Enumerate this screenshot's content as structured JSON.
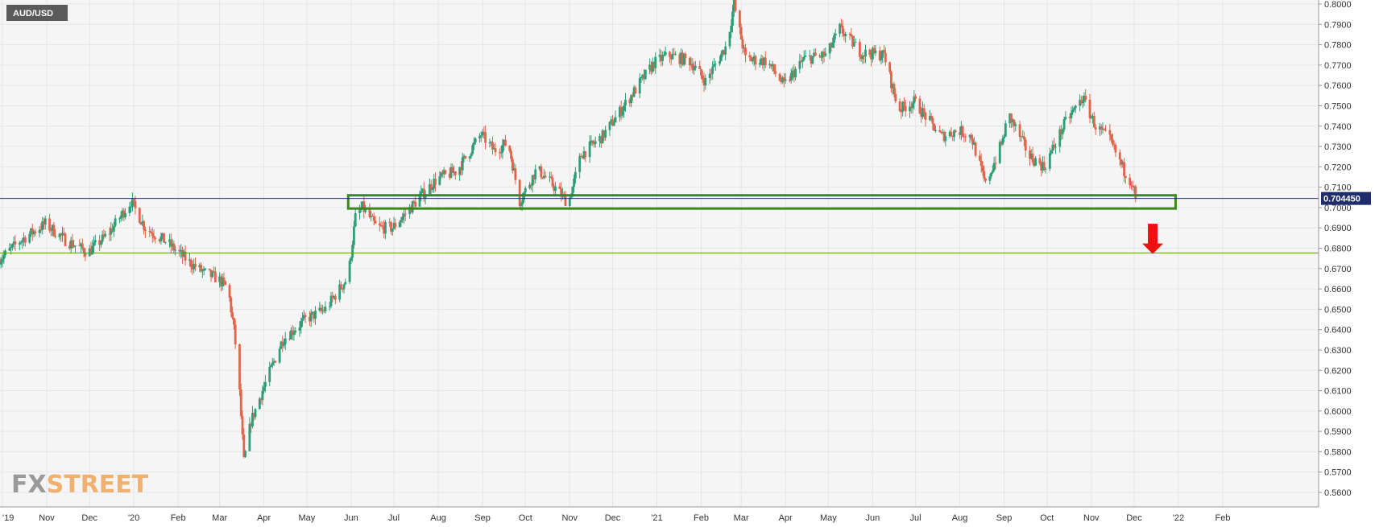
{
  "chart_data": {
    "type": "candlestick",
    "symbol": "AUD/USD",
    "current_price_label": "0.704450",
    "current_price": 0.70445,
    "ylim": [
      0.5525,
      0.8005
    ],
    "y_ticks": [
      "0.8000",
      "0.7900",
      "0.7800",
      "0.7700",
      "0.7600",
      "0.7500",
      "0.7400",
      "0.7300",
      "0.7200",
      "0.7100",
      "0.7000",
      "0.6900",
      "0.6800",
      "0.6700",
      "0.6600",
      "0.6500",
      "0.6400",
      "0.6300",
      "0.6200",
      "0.6100",
      "0.6000",
      "0.5900",
      "0.5800",
      "0.5700",
      "0.5600"
    ],
    "x_ticks": [
      "'19",
      "Nov",
      "Dec",
      "'20",
      "Feb",
      "Mar",
      "Apr",
      "May",
      "Jun",
      "Jul",
      "Aug",
      "Sep",
      "Oct",
      "Nov",
      "Dec",
      "'21",
      "Feb",
      "Mar",
      "Apr",
      "May",
      "Jun",
      "Jul",
      "Aug",
      "Sep",
      "Oct",
      "Nov",
      "Dec",
      "'22",
      "Feb"
    ],
    "price_path": [
      [
        "2019-10-01",
        0.675
      ],
      [
        "2019-10-15",
        0.684
      ],
      [
        "2019-11-01",
        0.692
      ],
      [
        "2019-11-15",
        0.684
      ],
      [
        "2019-12-01",
        0.678
      ],
      [
        "2019-12-15",
        0.687
      ],
      [
        "2019-12-31",
        0.703
      ],
      [
        "2020-01-10",
        0.69
      ],
      [
        "2020-01-25",
        0.683
      ],
      [
        "2020-02-10",
        0.673
      ],
      [
        "2020-02-20",
        0.668
      ],
      [
        "2020-03-01",
        0.665
      ],
      [
        "2020-03-08",
        0.66
      ],
      [
        "2020-03-12",
        0.64
      ],
      [
        "2020-03-15",
        0.62
      ],
      [
        "2020-03-19",
        0.575
      ],
      [
        "2020-03-24",
        0.595
      ],
      [
        "2020-04-01",
        0.61
      ],
      [
        "2020-04-15",
        0.635
      ],
      [
        "2020-05-01",
        0.645
      ],
      [
        "2020-05-15",
        0.65
      ],
      [
        "2020-05-31",
        0.666
      ],
      [
        "2020-06-05",
        0.695
      ],
      [
        "2020-06-10",
        0.7
      ],
      [
        "2020-06-20",
        0.69
      ],
      [
        "2020-07-01",
        0.69
      ],
      [
        "2020-07-10",
        0.697
      ],
      [
        "2020-07-20",
        0.705
      ],
      [
        "2020-08-01",
        0.714
      ],
      [
        "2020-08-15",
        0.718
      ],
      [
        "2020-09-01",
        0.736
      ],
      [
        "2020-09-10",
        0.728
      ],
      [
        "2020-09-20",
        0.732
      ],
      [
        "2020-09-28",
        0.703
      ],
      [
        "2020-10-10",
        0.719
      ],
      [
        "2020-10-20",
        0.712
      ],
      [
        "2020-11-01",
        0.702
      ],
      [
        "2020-11-10",
        0.726
      ],
      [
        "2020-11-25",
        0.735
      ],
      [
        "2020-12-15",
        0.755
      ],
      [
        "2020-12-31",
        0.771
      ],
      [
        "2021-01-10",
        0.775
      ],
      [
        "2021-01-25",
        0.772
      ],
      [
        "2021-02-05",
        0.762
      ],
      [
        "2021-02-20",
        0.78
      ],
      [
        "2021-02-25",
        0.8
      ],
      [
        "2021-03-05",
        0.773
      ],
      [
        "2021-03-20",
        0.772
      ],
      [
        "2021-04-01",
        0.76
      ],
      [
        "2021-04-15",
        0.773
      ],
      [
        "2021-05-01",
        0.775
      ],
      [
        "2021-05-10",
        0.788
      ],
      [
        "2021-05-25",
        0.776
      ],
      [
        "2021-06-10",
        0.775
      ],
      [
        "2021-06-20",
        0.748
      ],
      [
        "2021-07-01",
        0.752
      ],
      [
        "2021-07-20",
        0.735
      ],
      [
        "2021-08-01",
        0.738
      ],
      [
        "2021-08-10",
        0.735
      ],
      [
        "2021-08-20",
        0.711
      ],
      [
        "2021-09-01",
        0.733
      ],
      [
        "2021-09-05",
        0.746
      ],
      [
        "2021-09-20",
        0.725
      ],
      [
        "2021-09-30",
        0.72
      ],
      [
        "2021-10-15",
        0.742
      ],
      [
        "2021-10-27",
        0.754
      ],
      [
        "2021-11-05",
        0.74
      ],
      [
        "2021-11-15",
        0.733
      ],
      [
        "2021-11-25",
        0.718
      ],
      [
        "2021-12-01",
        0.712
      ],
      [
        "2021-12-03",
        0.7045
      ]
    ],
    "support_zone": {
      "from_date": "2020-05-31",
      "to_date": "2021-12-31",
      "low": 0.6995,
      "high": 0.706
    },
    "horizontal_lines": [
      0.70445,
      0.6777
    ],
    "arrow": {
      "direction": "down",
      "date": "2021-12-15",
      "from": 0.692,
      "to": 0.6772,
      "color": "#ee1111"
    },
    "colors": {
      "up": "#2e9e7a",
      "down": "#e0654b",
      "zone": "#3a8a19",
      "price_line": "#1f2d6b",
      "support_line": "#4e9a2a",
      "background": "#f5f5f5",
      "grid": "#e6e6e6"
    }
  },
  "watermark": {
    "fx": "FX",
    "street": "STREET"
  }
}
